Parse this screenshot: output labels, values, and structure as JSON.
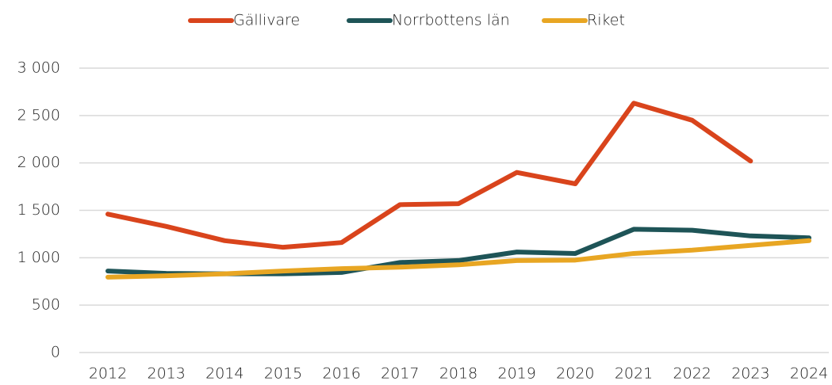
{
  "chart_data": {
    "type": "line",
    "categories": [
      "2012",
      "2013",
      "2014",
      "2015",
      "2016",
      "2017",
      "2018",
      "2019",
      "2020",
      "2021",
      "2022",
      "2023",
      "2024"
    ],
    "series": [
      {
        "name": "Gällivare",
        "color": "#d9441c",
        "values": [
          1460,
          1330,
          1180,
          1110,
          1160,
          1560,
          1570,
          1900,
          1780,
          2630,
          2450,
          2020,
          null
        ]
      },
      {
        "name": "Norrbottens län",
        "color": "#1e5457",
        "values": [
          860,
          835,
          830,
          830,
          845,
          950,
          970,
          1060,
          1045,
          1300,
          1290,
          1230,
          1210
        ]
      },
      {
        "name": "Riket",
        "color": "#e8a623",
        "values": [
          795,
          810,
          830,
          860,
          885,
          900,
          925,
          970,
          975,
          1045,
          1080,
          1130,
          1180
        ]
      }
    ],
    "ylim": [
      0,
      3000
    ],
    "yticks": [
      0,
      500,
      {
        "value": 1000,
        "label": "1 000"
      },
      {
        "value": 1500,
        "label": "1 500"
      },
      {
        "value": 2000,
        "label": "2 000"
      },
      {
        "value": 2500,
        "label": "2 500"
      },
      {
        "value": 3000,
        "label": "3 000"
      }
    ],
    "grid": true,
    "legend": "top"
  }
}
